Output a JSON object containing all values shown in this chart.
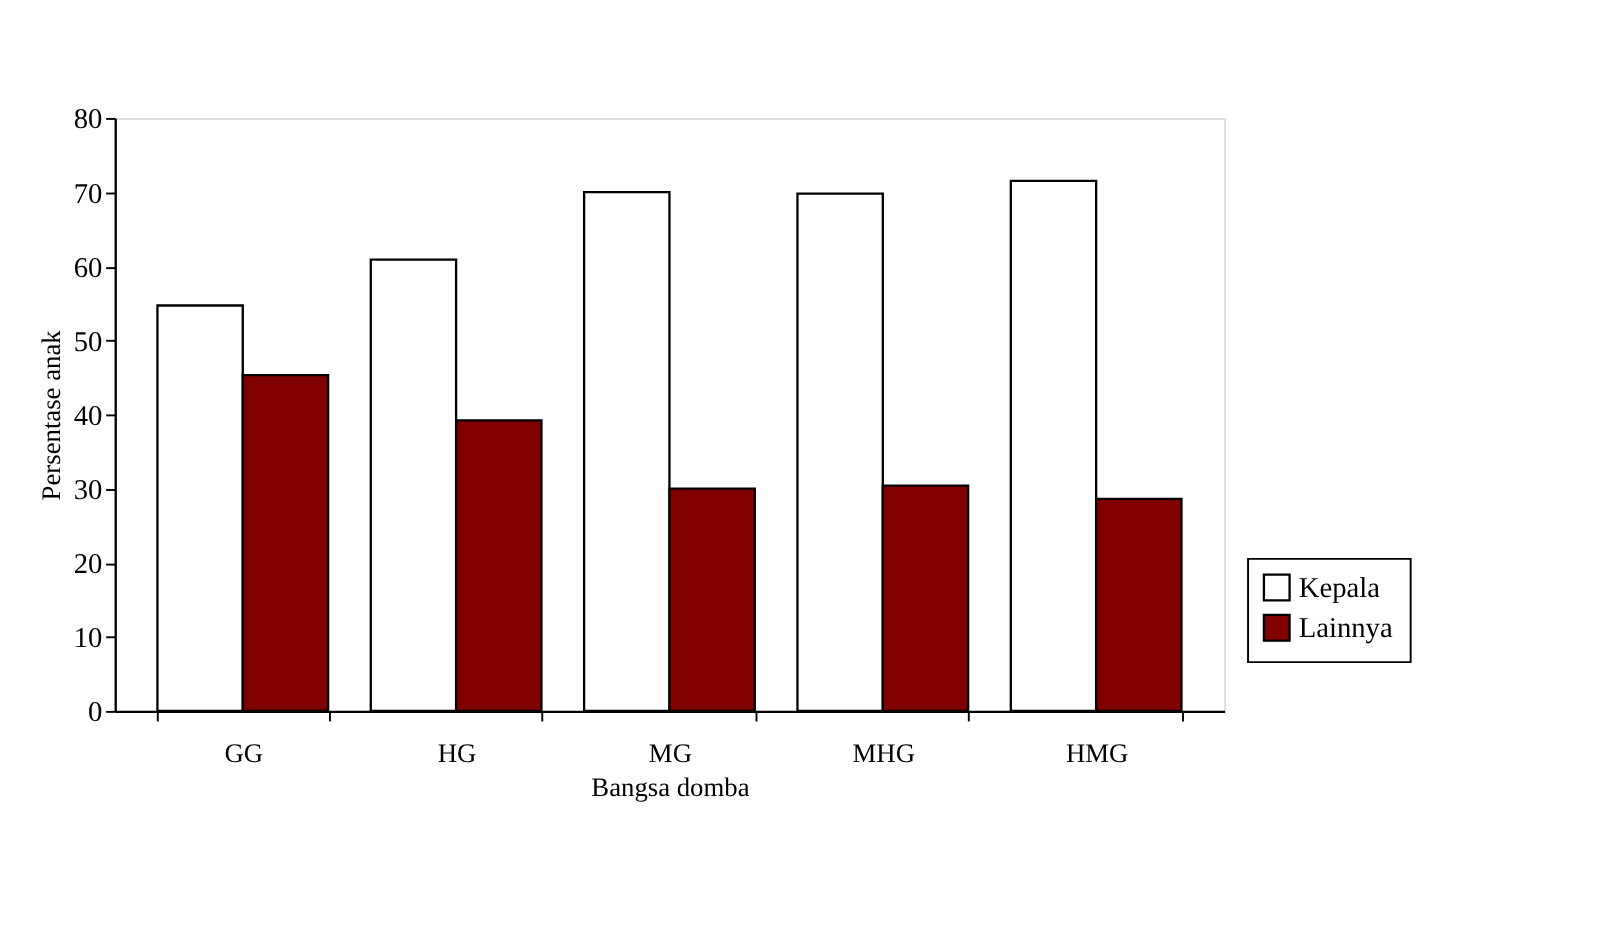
{
  "chart_data": {
    "type": "bar",
    "xlabel": "Bangsa domba",
    "ylabel": "Persentase anak",
    "categories": [
      "GG",
      "HG",
      "MG",
      "MHG",
      "HMG"
    ],
    "series": [
      {
        "name": "Kepala",
        "color": "#ffffff",
        "values": [
          54.7,
          60.9,
          70.0,
          69.8,
          71.5
        ]
      },
      {
        "name": "Lainnya",
        "color": "#800000",
        "values": [
          45.3,
          39.2,
          30.0,
          30.4,
          28.6
        ]
      }
    ],
    "ylim": [
      0,
      80
    ],
    "yticks": [
      0,
      10,
      20,
      30,
      40,
      50,
      60,
      70,
      80
    ],
    "grid": false,
    "legend": "bottom right"
  }
}
